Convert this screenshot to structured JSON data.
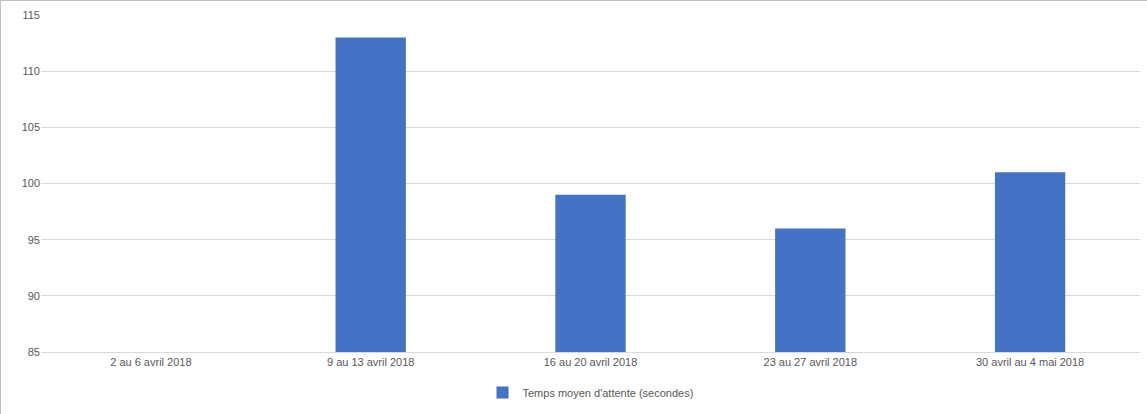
{
  "chart_data": {
    "type": "bar",
    "categories": [
      "2 au 6 avril 2018",
      "9 au 13 avril 2018",
      "16 au 20 avril 2018",
      "23 au 27 avril 2018",
      "30 avril au 4 mai 2018"
    ],
    "series": [
      {
        "name": "Temps moyen d'attente (secondes)",
        "color": "#4472c4",
        "values": [
          null,
          113,
          99,
          96,
          101
        ]
      }
    ],
    "ylim": [
      85,
      115
    ],
    "yticks": [
      85,
      90,
      95,
      100,
      105,
      110,
      115
    ],
    "grid": true,
    "legend": "bottom"
  }
}
